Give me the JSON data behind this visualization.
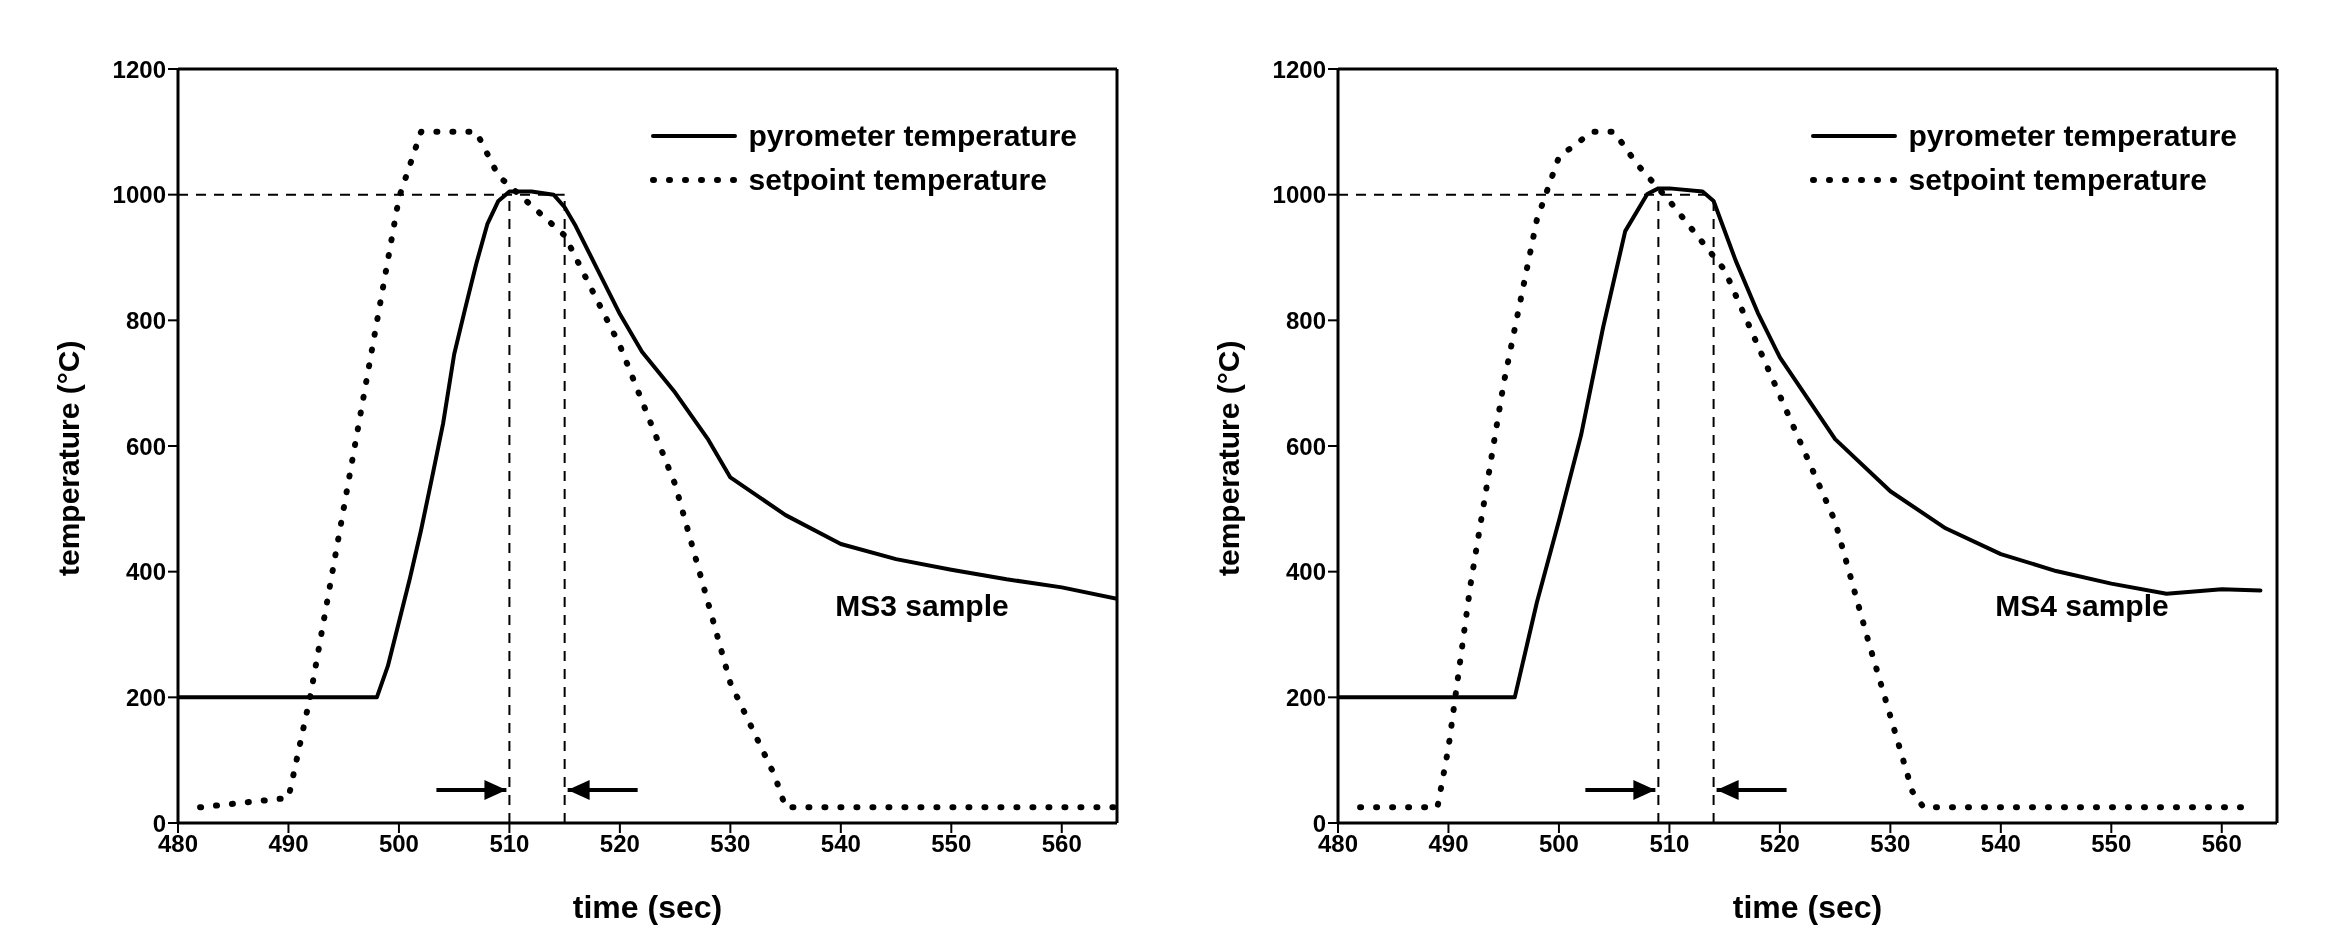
{
  "chart_data": [
    {
      "type": "line",
      "xlabel": "time (sec)",
      "ylabel": "temperature (°C)",
      "xlim": [
        480,
        565
      ],
      "xticks": [
        480,
        490,
        500,
        510,
        520,
        530,
        540,
        550,
        560
      ],
      "ylim": [
        0,
        1200
      ],
      "yticks": [
        0,
        200,
        400,
        600,
        800,
        1000,
        1200
      ],
      "grid": false,
      "legend": "top right",
      "marker": "none",
      "annotations": [
        "MS3 sample"
      ],
      "ref_lines": [
        {
          "axis": "y",
          "value": 1000,
          "line_style": "dashed"
        },
        {
          "axis": "x",
          "value": 510,
          "line_style": "dashed"
        },
        {
          "axis": "x",
          "value": 515,
          "line_style": "dashed"
        }
      ],
      "series": [
        {
          "name": "pyrometer temperature",
          "color": "#000000",
          "line_style": "solid",
          "x": [
            480,
            490,
            498,
            499,
            500,
            501,
            502,
            503,
            504,
            505,
            506,
            507,
            508,
            509,
            510,
            512,
            514,
            515,
            516,
            518,
            520,
            522,
            525,
            528,
            530,
            535,
            540,
            545,
            550,
            555,
            560,
            565
          ],
          "values": [
            200,
            200,
            200,
            250,
            320,
            390,
            466,
            550,
            636,
            746,
            819,
            890,
            953,
            990,
            1005,
            1005,
            1000,
            980,
            950,
            880,
            810,
            750,
            685,
            610,
            550,
            490,
            444,
            420,
            403,
            388,
            375,
            357
          ]
        },
        {
          "name": "setpoint temperature",
          "color": "#000000",
          "line_style": "dotted",
          "x": [
            482,
            490,
            492,
            500,
            502,
            507,
            509,
            515,
            520,
            525,
            530,
            534,
            535,
            565
          ],
          "values": [
            25,
            40,
            204,
            995,
            1100,
            1100,
            1030,
            935,
            760,
            539,
            223,
            76,
            25,
            25
          ]
        }
      ]
    },
    {
      "type": "line",
      "xlabel": "time (sec)",
      "ylabel": "temperature (°C)",
      "xlim": [
        480,
        565
      ],
      "xticks": [
        480,
        490,
        500,
        510,
        520,
        530,
        540,
        550,
        560
      ],
      "ylim": [
        0,
        1200
      ],
      "yticks": [
        0,
        200,
        400,
        600,
        800,
        1000,
        1200
      ],
      "grid": false,
      "legend": "top right",
      "marker": "none",
      "annotations": [
        "MS4 sample"
      ],
      "ref_lines": [
        {
          "axis": "y",
          "value": 1000,
          "line_style": "dashed"
        },
        {
          "axis": "x",
          "value": 509,
          "line_style": "dashed"
        },
        {
          "axis": "x",
          "value": 514,
          "line_style": "dashed"
        }
      ],
      "series": [
        {
          "name": "pyrometer temperature",
          "color": "#000000",
          "line_style": "solid",
          "x": [
            480,
            490,
            496,
            498,
            500,
            502,
            504,
            506,
            508,
            509,
            510,
            513,
            514,
            516,
            518,
            520,
            525,
            530,
            535,
            540,
            545,
            550,
            555,
            560,
            563.5
          ],
          "values": [
            200,
            200,
            200,
            351,
            481,
            617,
            789,
            942,
            1001,
            1010,
            1010,
            1005,
            990,
            895,
            812,
            741,
            611,
            528,
            469,
            428,
            401,
            381,
            365,
            372,
            370
          ]
        },
        {
          "name": "setpoint temperature",
          "color": "#000000",
          "line_style": "dotted",
          "x": [
            482,
            489,
            490,
            492,
            495,
            498,
            500,
            503,
            505,
            507,
            510,
            515,
            520,
            525,
            528,
            532,
            533,
            562
          ],
          "values": [
            25,
            25,
            120,
            380,
            700,
            960,
            1060,
            1100,
            1100,
            1050,
            990,
            880,
            680,
            480,
            290,
            50,
            25,
            25
          ]
        }
      ]
    }
  ]
}
